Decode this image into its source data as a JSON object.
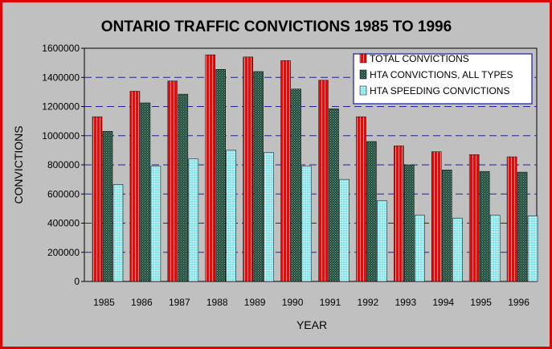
{
  "chart_data": {
    "type": "bar",
    "title": "ONTARIO TRAFFIC CONVICTIONS  1985 TO 1996",
    "xlabel": "YEAR",
    "ylabel": "CONVICTIONS",
    "categories": [
      "1985",
      "1986",
      "1987",
      "1988",
      "1989",
      "1990",
      "1991",
      "1992",
      "1993",
      "1994",
      "1995",
      "1996"
    ],
    "ylim": [
      0,
      1600000
    ],
    "yticks": [
      0,
      200000,
      400000,
      600000,
      800000,
      1000000,
      1200000,
      1400000,
      1600000
    ],
    "ytick_labels": [
      "0",
      "200000",
      "400000",
      "600000",
      "800000",
      "1000000",
      "1200000",
      "1400000",
      "1600000"
    ],
    "grid": "dashed horizontal",
    "legend_position": "top-right",
    "series": [
      {
        "name": "TOTAL CONVICTIONS",
        "color": "#ff0000",
        "values": [
          1130000,
          1305000,
          1375000,
          1555000,
          1540000,
          1515000,
          1380000,
          1130000,
          930000,
          890000,
          870000,
          855000
        ]
      },
      {
        "name": "HTA CONVICTIONS, ALL TYPES",
        "color": "#2d6e55",
        "values": [
          1030000,
          1225000,
          1285000,
          1455000,
          1440000,
          1320000,
          1185000,
          960000,
          800000,
          765000,
          755000,
          750000
        ]
      },
      {
        "name": "HTA SPEEDING CONVICTIONS",
        "color": "#7ae0ea",
        "values": [
          665000,
          790000,
          840000,
          900000,
          885000,
          790000,
          700000,
          555000,
          455000,
          435000,
          455000,
          450000
        ]
      }
    ]
  }
}
